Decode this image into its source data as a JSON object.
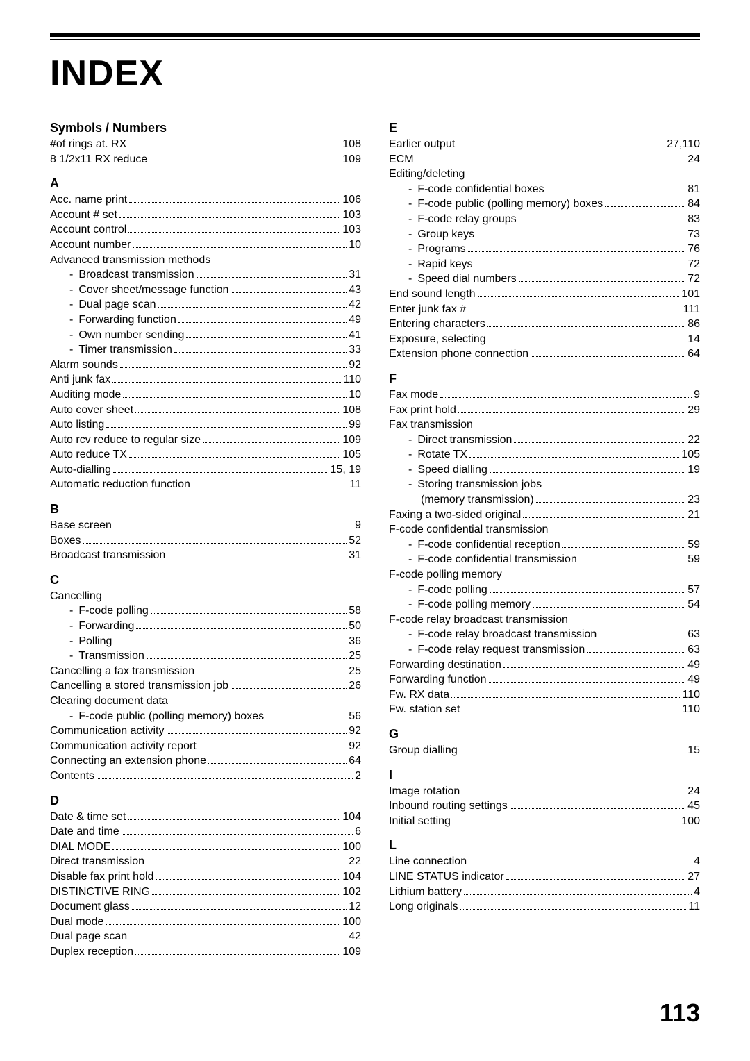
{
  "page_title": "INDEX",
  "page_number": "113",
  "columns": [
    {
      "sections": [
        {
          "letter": "Symbols / Numbers",
          "entries": [
            {
              "label": "#of rings at. RX",
              "page": "108"
            },
            {
              "label": "8 1/2x11 RX reduce",
              "page": "109"
            }
          ]
        },
        {
          "letter": "A",
          "entries": [
            {
              "label": "Acc. name print",
              "page": "106"
            },
            {
              "label": "Account # set",
              "page": "103"
            },
            {
              "label": "Account control",
              "page": "103"
            },
            {
              "label": "Account number",
              "page": "10"
            },
            {
              "label": "Advanced transmission methods",
              "group": true
            },
            {
              "label": "Broadcast transmission",
              "page": "31",
              "sub": true
            },
            {
              "label": "Cover sheet/message function",
              "page": "43",
              "sub": true
            },
            {
              "label": "Dual page scan",
              "page": "42",
              "sub": true
            },
            {
              "label": "Forwarding function",
              "page": "49",
              "sub": true
            },
            {
              "label": "Own number sending",
              "page": "41",
              "sub": true
            },
            {
              "label": "Timer transmission",
              "page": "33",
              "sub": true
            },
            {
              "label": "Alarm sounds",
              "page": "92"
            },
            {
              "label": "Anti junk fax",
              "page": "110"
            },
            {
              "label": "Auditing mode",
              "page": "10"
            },
            {
              "label": "Auto cover sheet",
              "page": "108"
            },
            {
              "label": "Auto listing",
              "page": "99"
            },
            {
              "label": "Auto rcv reduce to regular size",
              "page": "109"
            },
            {
              "label": "Auto reduce TX",
              "page": "105"
            },
            {
              "label": "Auto-dialling",
              "page": "15, 19"
            },
            {
              "label": "Automatic reduction function",
              "page": "11"
            }
          ]
        },
        {
          "letter": "B",
          "entries": [
            {
              "label": "Base screen",
              "page": "9"
            },
            {
              "label": "Boxes",
              "page": "52"
            },
            {
              "label": "Broadcast transmission",
              "page": "31"
            }
          ]
        },
        {
          "letter": "C",
          "entries": [
            {
              "label": "Cancelling",
              "group": true
            },
            {
              "label": "F-code polling",
              "page": "58",
              "sub": true
            },
            {
              "label": "Forwarding",
              "page": "50",
              "sub": true
            },
            {
              "label": "Polling",
              "page": "36",
              "sub": true
            },
            {
              "label": "Transmission",
              "page": "25",
              "sub": true
            },
            {
              "label": "Cancelling a fax transmission",
              "page": "25"
            },
            {
              "label": "Cancelling a stored transmission job",
              "page": "26"
            },
            {
              "label": "Clearing document data",
              "group": true
            },
            {
              "label": "F-code public (polling memory) boxes",
              "page": "56",
              "sub": true
            },
            {
              "label": "Communication activity",
              "page": "92"
            },
            {
              "label": "Communication activity report",
              "page": "92"
            },
            {
              "label": "Connecting an extension phone",
              "page": "64"
            },
            {
              "label": "Contents",
              "page": "2"
            }
          ]
        },
        {
          "letter": "D",
          "entries": [
            {
              "label": "Date & time set",
              "page": "104"
            },
            {
              "label": "Date and time",
              "page": "6"
            },
            {
              "label": "DIAL MODE",
              "page": "100"
            },
            {
              "label": "Direct transmission",
              "page": "22"
            },
            {
              "label": "Disable fax print hold",
              "page": "104"
            },
            {
              "label": "DISTINCTIVE RING",
              "page": "102"
            },
            {
              "label": "Document glass",
              "page": "12"
            },
            {
              "label": "Dual mode",
              "page": "100"
            },
            {
              "label": "Dual page scan",
              "page": "42"
            },
            {
              "label": "Duplex reception",
              "page": "109"
            }
          ]
        }
      ]
    },
    {
      "sections": [
        {
          "letter": "E",
          "entries": [
            {
              "label": "Earlier output",
              "page": "27,110"
            },
            {
              "label": "ECM",
              "page": "24"
            },
            {
              "label": "Editing/deleting",
              "group": true
            },
            {
              "label": "F-code confidential boxes",
              "page": "81",
              "sub": true
            },
            {
              "label": "F-code public (polling memory) boxes",
              "page": "84",
              "sub": true
            },
            {
              "label": "F-code relay groups",
              "page": "83",
              "sub": true
            },
            {
              "label": "Group keys",
              "page": "73",
              "sub": true
            },
            {
              "label": "Programs",
              "page": "76",
              "sub": true
            },
            {
              "label": "Rapid keys",
              "page": "72",
              "sub": true
            },
            {
              "label": "Speed dial numbers",
              "page": "72",
              "sub": true
            },
            {
              "label": "End sound length",
              "page": "101"
            },
            {
              "label": "Enter junk fax #",
              "page": "111"
            },
            {
              "label": "Entering characters",
              "page": "86"
            },
            {
              "label": "Exposure, selecting",
              "page": "14"
            },
            {
              "label": "Extension phone connection",
              "page": "64"
            }
          ]
        },
        {
          "letter": "F",
          "entries": [
            {
              "label": "Fax mode",
              "page": "9"
            },
            {
              "label": "Fax print hold",
              "page": "29"
            },
            {
              "label": "Fax transmission",
              "group": true
            },
            {
              "label": "Direct transmission",
              "page": "22",
              "sub": true
            },
            {
              "label": "Rotate TX",
              "page": "105",
              "sub": true
            },
            {
              "label": "Speed dialling",
              "page": "19",
              "sub": true
            },
            {
              "label": "Storing transmission jobs",
              "group": true,
              "sub": true
            },
            {
              "label": "(memory transmission)",
              "page": "23",
              "deep": true
            },
            {
              "label": "Faxing a two-sided original",
              "page": "21"
            },
            {
              "label": "F-code confidential transmission",
              "group": true
            },
            {
              "label": "F-code confidential reception",
              "page": "59",
              "sub": true
            },
            {
              "label": "F-code confidential transmission",
              "page": "59",
              "sub": true
            },
            {
              "label": "F-code polling memory",
              "group": true
            },
            {
              "label": "F-code polling",
              "page": "57",
              "sub": true
            },
            {
              "label": "F-code polling memory",
              "page": "54",
              "sub": true
            },
            {
              "label": "F-code relay broadcast transmission",
              "group": true
            },
            {
              "label": "F-code relay broadcast transmission",
              "page": "63",
              "sub": true
            },
            {
              "label": "F-code relay request transmission",
              "page": "63",
              "sub": true
            },
            {
              "label": "Forwarding destination",
              "page": "49"
            },
            {
              "label": "Forwarding function",
              "page": "49"
            },
            {
              "label": "Fw. RX data",
              "page": "110"
            },
            {
              "label": "Fw. station set",
              "page": "110"
            }
          ]
        },
        {
          "letter": "G",
          "entries": [
            {
              "label": "Group dialling",
              "page": "15"
            }
          ]
        },
        {
          "letter": "I",
          "entries": [
            {
              "label": "Image rotation",
              "page": "24"
            },
            {
              "label": "Inbound routing settings",
              "page": "45"
            },
            {
              "label": "Initial setting",
              "page": "100"
            }
          ]
        },
        {
          "letter": "L",
          "entries": [
            {
              "label": "Line connection",
              "page": "4"
            },
            {
              "label": "LINE STATUS indicator",
              "page": "27"
            },
            {
              "label": "Lithium battery",
              "page": "4"
            },
            {
              "label": "Long originals",
              "page": "11"
            }
          ]
        }
      ]
    }
  ]
}
